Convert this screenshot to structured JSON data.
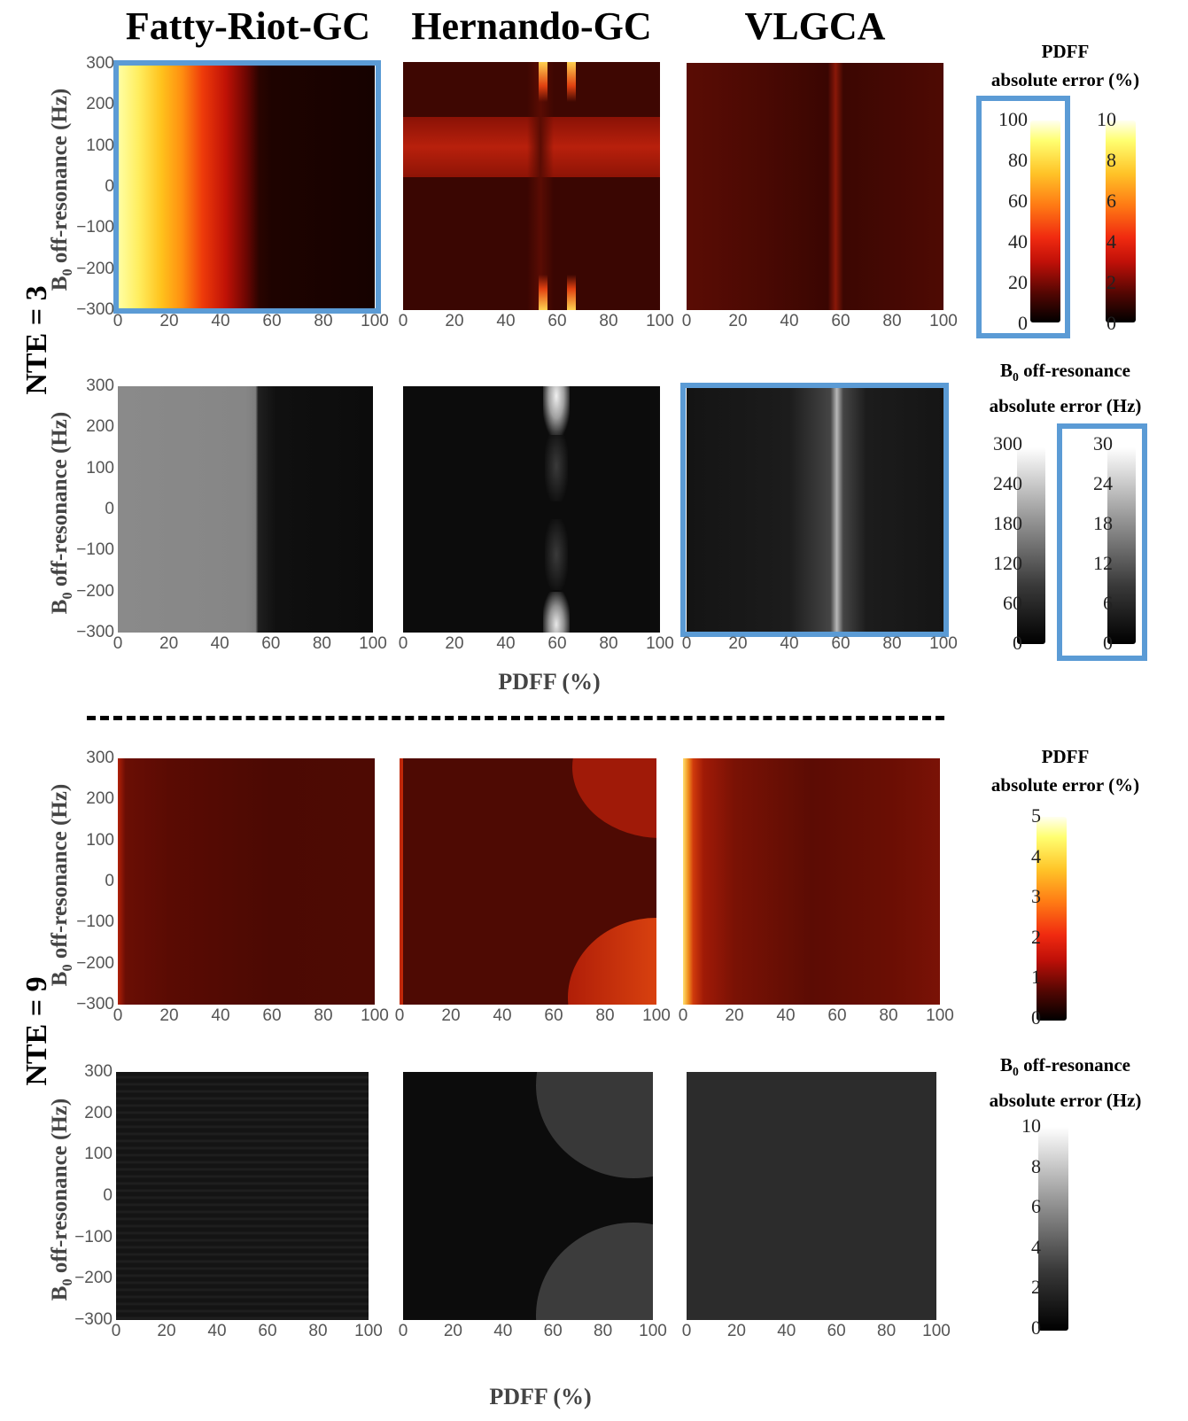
{
  "columns": [
    "Fatty-Riot-GC",
    "Hernando-GC",
    "VLGCA"
  ],
  "rows": [
    {
      "nte_label": "NTE = 3"
    },
    {
      "nte_label": "NTE = 9"
    }
  ],
  "axis": {
    "ylabel_main": "B",
    "ylabel_sub": "0",
    "ylabel_rest": " off-resonance (Hz)",
    "xlabel": "PDFF (%)",
    "y_ticks": [
      "300",
      "200",
      "100",
      "0",
      "−100",
      "−200",
      "−300"
    ],
    "x_ticks": [
      "0",
      "20",
      "40",
      "60",
      "80",
      "100"
    ]
  },
  "colorbars": {
    "pdff_title_1": "PDFF",
    "pdff_title_2": "absolute error  (%)",
    "b0_title_1a": "B",
    "b0_title_1sub": "0",
    "b0_title_1b": " off-resonance",
    "b0_title_2": "absolute error (Hz)",
    "nte3_pdff_a": [
      "100",
      "80",
      "60",
      "40",
      "20",
      "0"
    ],
    "nte3_pdff_b": [
      "10",
      "8",
      "6",
      "4",
      "2",
      "0"
    ],
    "nte3_b0_a": [
      "300",
      "240",
      "180",
      "120",
      "60",
      "0"
    ],
    "nte3_b0_b": [
      "30",
      "24",
      "18",
      "12",
      "6",
      "0"
    ],
    "nte9_pdff": [
      "5",
      "4",
      "3",
      "2",
      "1",
      "0"
    ],
    "nte9_b0": [
      "10",
      "8",
      "6",
      "4",
      "2",
      "0"
    ]
  },
  "colors": {
    "highlight": "#5b9bd5",
    "hot_dark": "#1a0400",
    "hot_red": "#e0160a",
    "hot_yellow": "#ffff90"
  },
  "chart_data": [
    {
      "type": "heatmap",
      "row": "NTE = 3",
      "column": "Fatty-Riot-GC",
      "metric": "PDFF absolute error (%)",
      "scale": [
        0,
        100
      ],
      "xlim": [
        0,
        100
      ],
      "ylim": [
        -300,
        300
      ],
      "highlighted": true,
      "profile_x": [
        0,
        20,
        40,
        55,
        60,
        80,
        100
      ],
      "profile_value": [
        100,
        75,
        40,
        10,
        2,
        1,
        1
      ]
    },
    {
      "type": "heatmap",
      "row": "NTE = 3",
      "column": "Hernando-GC",
      "metric": "PDFF absolute error (%)",
      "scale": [
        0,
        10
      ],
      "xlim": [
        0,
        100
      ],
      "ylim": [
        -300,
        300
      ]
    },
    {
      "type": "heatmap",
      "row": "NTE = 3",
      "column": "VLGCA",
      "metric": "PDFF absolute error (%)",
      "scale": [
        0,
        10
      ],
      "xlim": [
        0,
        100
      ],
      "ylim": [
        -300,
        300
      ]
    },
    {
      "type": "heatmap",
      "row": "NTE = 3",
      "column": "Fatty-Riot-GC",
      "metric": "B0 off-resonance absolute error (Hz)",
      "scale": [
        0,
        300
      ],
      "xlim": [
        0,
        100
      ],
      "ylim": [
        -300,
        300
      ]
    },
    {
      "type": "heatmap",
      "row": "NTE = 3",
      "column": "Hernando-GC",
      "metric": "B0 off-resonance absolute error (Hz)",
      "scale": [
        0,
        300
      ],
      "xlim": [
        0,
        100
      ],
      "ylim": [
        -300,
        300
      ]
    },
    {
      "type": "heatmap",
      "row": "NTE = 3",
      "column": "VLGCA",
      "metric": "B0 off-resonance absolute error (Hz)",
      "scale": [
        0,
        30
      ],
      "xlim": [
        0,
        100
      ],
      "ylim": [
        -300,
        300
      ],
      "highlighted": true
    },
    {
      "type": "heatmap",
      "row": "NTE = 9",
      "column": "Fatty-Riot-GC",
      "metric": "PDFF absolute error (%)",
      "scale": [
        0,
        5
      ],
      "xlim": [
        0,
        100
      ],
      "ylim": [
        -300,
        300
      ]
    },
    {
      "type": "heatmap",
      "row": "NTE = 9",
      "column": "Hernando-GC",
      "metric": "PDFF absolute error (%)",
      "scale": [
        0,
        5
      ],
      "xlim": [
        0,
        100
      ],
      "ylim": [
        -300,
        300
      ]
    },
    {
      "type": "heatmap",
      "row": "NTE = 9",
      "column": "VLGCA",
      "metric": "PDFF absolute error (%)",
      "scale": [
        0,
        5
      ],
      "xlim": [
        0,
        100
      ],
      "ylim": [
        -300,
        300
      ]
    },
    {
      "type": "heatmap",
      "row": "NTE = 9",
      "column": "Fatty-Riot-GC",
      "metric": "B0 off-resonance absolute error (Hz)",
      "scale": [
        0,
        10
      ],
      "xlim": [
        0,
        100
      ],
      "ylim": [
        -300,
        300
      ]
    },
    {
      "type": "heatmap",
      "row": "NTE = 9",
      "column": "Hernando-GC",
      "metric": "B0 off-resonance absolute error (Hz)",
      "scale": [
        0,
        10
      ],
      "xlim": [
        0,
        100
      ],
      "ylim": [
        -300,
        300
      ]
    },
    {
      "type": "heatmap",
      "row": "NTE = 9",
      "column": "VLGCA",
      "metric": "B0 off-resonance absolute error (Hz)",
      "scale": [
        0,
        10
      ],
      "xlim": [
        0,
        100
      ],
      "ylim": [
        -300,
        300
      ]
    }
  ]
}
